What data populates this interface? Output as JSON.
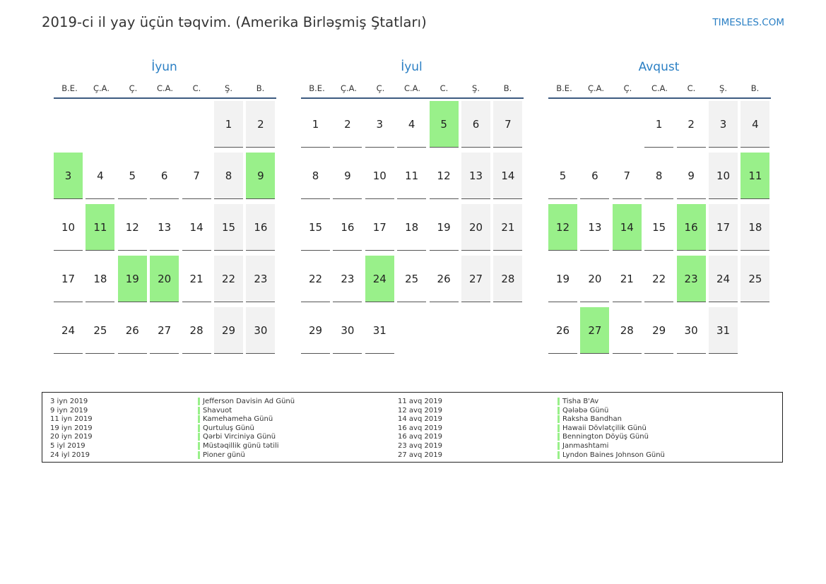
{
  "header": {
    "title": "2019-ci il yay üçün təqvim. (Amerika Birləşmiş Ştatları)",
    "site": "TIMESLES.COM"
  },
  "weekdays": [
    "B.E.",
    "Ç.A.",
    "Ç.",
    "C.A.",
    "C.",
    "Ş.",
    "B."
  ],
  "months": [
    {
      "name": "İyun",
      "start_offset": 5,
      "days": 30,
      "holidays": [
        3,
        9,
        11,
        19,
        20
      ]
    },
    {
      "name": "İyul",
      "start_offset": 0,
      "days": 31,
      "holidays": [
        5,
        24
      ]
    },
    {
      "name": "Avqust",
      "start_offset": 3,
      "days": 31,
      "holidays": [
        11,
        12,
        14,
        16,
        23,
        27
      ]
    }
  ],
  "legend": {
    "left": [
      {
        "date": "3 iyn 2019",
        "name": "Jefferson Davisin Ad Günü"
      },
      {
        "date": "9 iyn 2019",
        "name": "Shavuot"
      },
      {
        "date": "11 iyn 2019",
        "name": "Kamehameha Günü"
      },
      {
        "date": "19 iyn 2019",
        "name": "Qurtuluş Günü"
      },
      {
        "date": "20 iyn 2019",
        "name": "Qərbi Virciniya Günü"
      },
      {
        "date": "5 iyl 2019",
        "name": "Müstəqillik günü tətili"
      },
      {
        "date": "24 iyl 2019",
        "name": "Pioner günü"
      }
    ],
    "right": [
      {
        "date": "11 avq 2019",
        "name": "Tisha B'Av"
      },
      {
        "date": "12 avq 2019",
        "name": "Qələbə Günü"
      },
      {
        "date": "14 avq 2019",
        "name": "Raksha Bandhan"
      },
      {
        "date": "16 avq 2019",
        "name": "Hawaii Dövlətçilik Günü"
      },
      {
        "date": "16 avq 2019",
        "name": "Bennington Döyüş Günü"
      },
      {
        "date": "23 avq 2019",
        "name": "Janmashtami"
      },
      {
        "date": "27 avq 2019",
        "name": "Lyndon Baines Johnson Günü"
      }
    ]
  },
  "colors": {
    "accent": "#2a7fc4",
    "holiday": "#99f08a",
    "weekend": "#f2f2f2",
    "header_rule": "#3d5a80"
  }
}
